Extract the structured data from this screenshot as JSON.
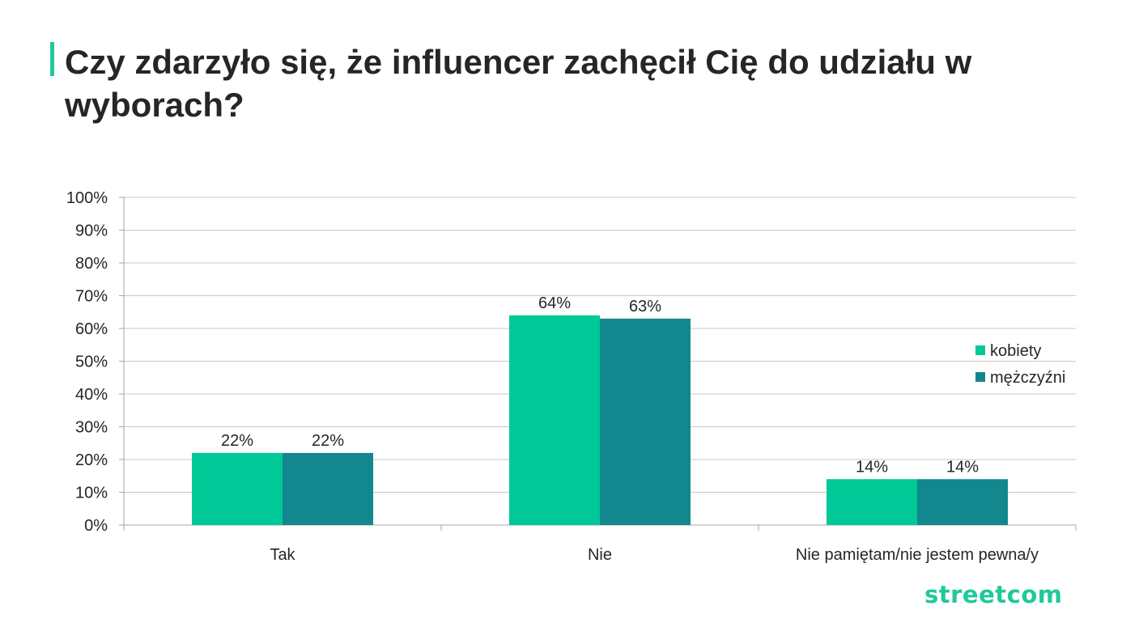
{
  "title": "Czy zdarzyło się, że influencer zachęcił Cię do udziału w wyborach?",
  "logo_text": "streetcom",
  "colors": {
    "accent": "#1fc99a",
    "kobiety": "#00c896",
    "mezczyzni": "#12888e",
    "text": "#262626"
  },
  "chart_data": {
    "type": "bar",
    "categories": [
      "Tak",
      "Nie",
      "Nie pamiętam/nie jestem pewna/y"
    ],
    "series": [
      {
        "name": "kobiety",
        "values": [
          22,
          64,
          14
        ],
        "labels": [
          "22%",
          "64%",
          "14%"
        ],
        "color": "#00c896"
      },
      {
        "name": "mężczyźni",
        "values": [
          22,
          63,
          14
        ],
        "labels": [
          "22%",
          "63%",
          "14%"
        ],
        "color": "#12888e"
      }
    ],
    "ylim": [
      0,
      100
    ],
    "yticks": [
      "0%",
      "10%",
      "20%",
      "30%",
      "40%",
      "50%",
      "60%",
      "70%",
      "80%",
      "90%",
      "100%"
    ],
    "grid": true,
    "legend_position": "right"
  }
}
